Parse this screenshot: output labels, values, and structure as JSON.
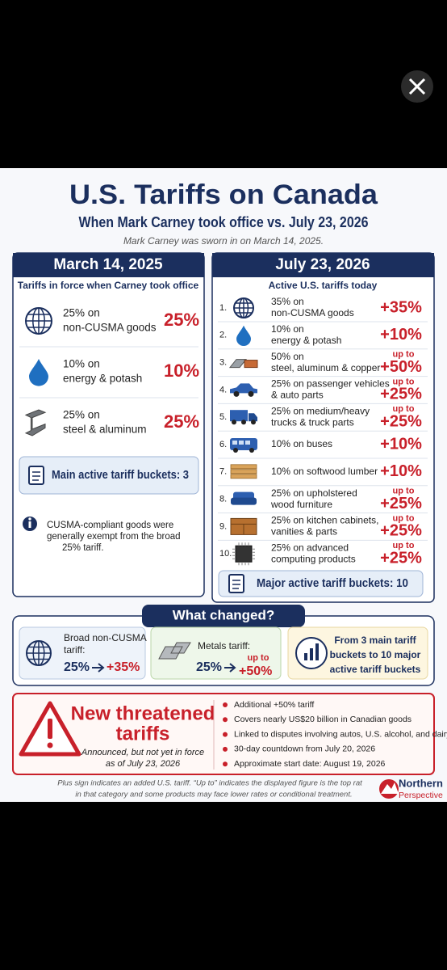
{
  "header": {
    "title": "U.S. Tariffs on Canada",
    "subtitle": "When Mark Carney took office vs. July 23, 2026",
    "note": "Mark Carney was sworn in on March 14, 2025."
  },
  "then": {
    "heading": "March 14, 2025",
    "caption": "Tariffs in force when Carney took office",
    "items": [
      {
        "lines": [
          "25% on",
          "non-CUSMA goods"
        ],
        "rate": "25%"
      },
      {
        "lines": [
          "10% on",
          "energy & potash"
        ],
        "rate": "10%"
      },
      {
        "lines": [
          "25% on",
          "steel & aluminum"
        ],
        "rate": "25%"
      }
    ],
    "summary": "Main active tariff buckets: 3",
    "note": [
      "CUSMA-compliant goods were",
      "generally exempt from the broad",
      "25% tariff."
    ]
  },
  "now": {
    "heading": "July 23, 2026",
    "caption": "Active U.S. tariffs today",
    "items": [
      {
        "number": "1.",
        "lines": [
          "35% on",
          "non-CUSMA goods"
        ],
        "rate": "+35%"
      },
      {
        "number": "2.",
        "lines": [
          "10% on",
          "energy & potash"
        ],
        "rate": "+10%"
      },
      {
        "number": "3.",
        "lines": [
          "50% on",
          "steel, aluminum & copper"
        ],
        "qualifier": "up to",
        "rate": "+50%"
      },
      {
        "number": "4.",
        "lines": [
          "25% on passenger vehicles",
          "& auto parts"
        ],
        "qualifier": "up to",
        "rate": "+25%"
      },
      {
        "number": "5.",
        "lines": [
          "25% on medium/heavy",
          "trucks & truck parts"
        ],
        "qualifier": "up to",
        "rate": "+25%"
      },
      {
        "number": "6.",
        "lines": [
          "10% on buses"
        ],
        "rate": "+10%"
      },
      {
        "number": "7.",
        "lines": [
          "10% on softwood lumber"
        ],
        "rate": "+10%"
      },
      {
        "number": "8.",
        "lines": [
          "25% on upholstered",
          "wood furniture"
        ],
        "qualifier": "up to",
        "rate": "+25%"
      },
      {
        "number": "9.",
        "lines": [
          "25% on kitchen cabinets,",
          "vanities & parts"
        ],
        "qualifier": "up to",
        "rate": "+25%"
      },
      {
        "number": "10.",
        "lines": [
          "25% on advanced",
          "computing products"
        ],
        "qualifier": "up to",
        "rate": "+25%"
      }
    ],
    "summary": "Major active tariff buckets: 10"
  },
  "changes": {
    "heading": "What changed?",
    "cards": [
      {
        "label": [
          "Broad non-CUSMA",
          "tariff:"
        ],
        "from": "25%",
        "to": "+35%"
      },
      {
        "label": [
          "Metals tariff:"
        ],
        "from": "25%",
        "qualifier": "up to",
        "to": "+50%"
      },
      {
        "lines": [
          "From 3 main tariff",
          "buckets to 10 major",
          "active tariff buckets"
        ]
      }
    ]
  },
  "threat": {
    "title": [
      "New threatened",
      "tariffs"
    ],
    "subtitle": [
      "Announced, but not yet in force",
      "as of July 23, 2026"
    ],
    "bullets": [
      "Additional +50% tariff",
      "Covers nearly US$20 billion in Canadian goods",
      "Linked to disputes involving autos, U.S. alcohol, and dairy",
      "30-day countdown from July 20, 2026",
      "Approximate start date: August 19, 2026"
    ]
  },
  "footer": [
    "Plus sign indicates an added U.S. tariff. “Up to” indicates the displayed figure is the top rat",
    "in that category and some products may face lower rates or conditional treatment."
  ],
  "logo": {
    "name": "Northern",
    "tagline": "Perspective"
  }
}
